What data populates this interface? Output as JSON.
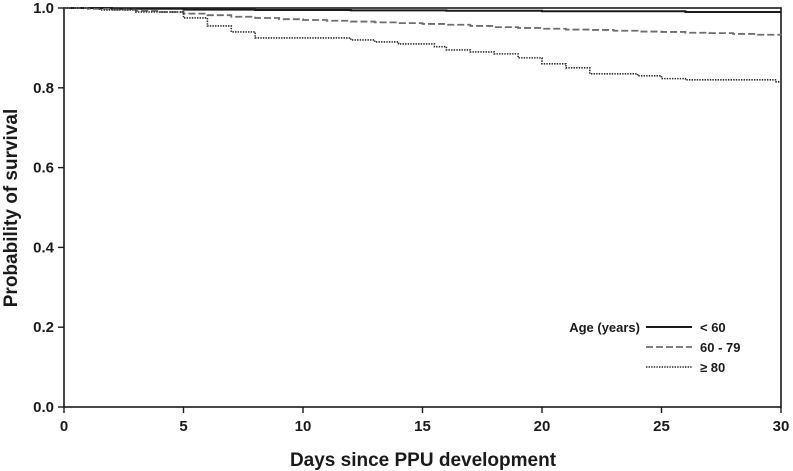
{
  "chart_data": {
    "type": "line",
    "subtype": "step (Kaplan-Meier survival curves)",
    "title": "",
    "xlabel": "Days since PPU development",
    "ylabel": "Probability of survival",
    "xlim": [
      0,
      30
    ],
    "ylim": [
      0,
      1.0
    ],
    "xticks": [
      0,
      5,
      10,
      15,
      20,
      25,
      30
    ],
    "xtick_labels": [
      "0",
      "5",
      "10",
      "15",
      "20",
      "25",
      "30"
    ],
    "yticks": [
      0,
      0.2,
      0.4,
      0.6,
      0.8,
      1.0
    ],
    "ytick_labels": [
      "0.0",
      "0.2",
      "0.4",
      "0.6",
      "0.8",
      "1.0"
    ],
    "grid": false,
    "legend": {
      "title": "Age (years)",
      "placement": "bottom-right"
    },
    "series": [
      {
        "name": "< 60",
        "style": "solid",
        "color": "#1a1a1a",
        "x": [
          0,
          2,
          5,
          8,
          12,
          16,
          20,
          26,
          30
        ],
        "y": [
          1.0,
          0.998,
          0.996,
          0.995,
          0.994,
          0.993,
          0.992,
          0.99,
          0.99
        ]
      },
      {
        "name": "60 - 79",
        "style": "dashed",
        "color": "#6e6e6e",
        "x": [
          0,
          1,
          2,
          3,
          4,
          5,
          6,
          7,
          8,
          9,
          10,
          11,
          12,
          13,
          14,
          15,
          16,
          17,
          18,
          19,
          20,
          21,
          22,
          23,
          24,
          25,
          26,
          27,
          28,
          29,
          30
        ],
        "y": [
          1.0,
          0.998,
          0.996,
          0.993,
          0.99,
          0.986,
          0.982,
          0.978,
          0.975,
          0.972,
          0.97,
          0.968,
          0.966,
          0.964,
          0.962,
          0.96,
          0.958,
          0.955,
          0.952,
          0.95,
          0.948,
          0.946,
          0.945,
          0.943,
          0.941,
          0.94,
          0.938,
          0.937,
          0.935,
          0.933,
          0.932
        ]
      },
      {
        "name": "≥ 80",
        "style": "dotted",
        "color": "#2a2a2a",
        "x": [
          0,
          1.5,
          3,
          5,
          6,
          7,
          8,
          12,
          13,
          14,
          15.5,
          16,
          17,
          18,
          19,
          20,
          21,
          22,
          24,
          25,
          26,
          29.8,
          30
        ],
        "y": [
          1.0,
          0.995,
          0.99,
          0.975,
          0.955,
          0.94,
          0.925,
          0.92,
          0.915,
          0.91,
          0.903,
          0.895,
          0.89,
          0.885,
          0.875,
          0.86,
          0.85,
          0.835,
          0.83,
          0.823,
          0.82,
          0.815,
          0.815
        ]
      }
    ]
  }
}
